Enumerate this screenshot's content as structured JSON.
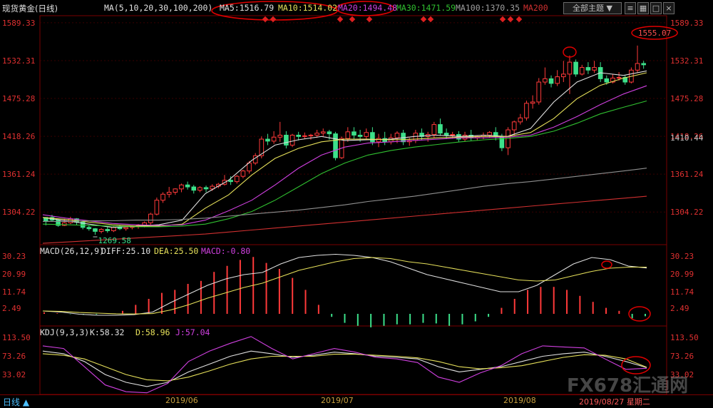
{
  "header": {
    "instrument": "现货黄金(日线)",
    "ma_label": "MA(5,10,20,30,100,200)",
    "ma5": "MA5:1516.79",
    "ma10": "MA10:1514.02",
    "ma20": "MA20:1494.48",
    "ma30": "MA30:1471.59",
    "ma100": "MA100:1370.35",
    "ma200": "MA200",
    "theme_button": "全部主题",
    "theme_arrow": "▼"
  },
  "macd_panel": {
    "title": "MACD(26,12,9)",
    "diff": "DIFF:25.10",
    "dea": "DEA:25.50",
    "macd": "MACD:-0.80",
    "ticks": [
      "30.23",
      "20.99",
      "11.74",
      "2.49"
    ]
  },
  "kdj_panel": {
    "title": "KDJ(9,3,3)",
    "k": "K:58.32",
    "d": "D:58.96",
    "j": "J:57.04",
    "ticks": [
      "113.50",
      "73.26",
      "33.02"
    ]
  },
  "footer": {
    "period": "日线 ▲",
    "months": [
      "2019/06",
      "2019/07",
      "2019/08"
    ],
    "current_date": "2019/08/27 星期二",
    "watermark": "FX678汇通网"
  },
  "colors": {
    "up": "#ff3a3a",
    "down": "#3ce08a",
    "ma5": "#e0e0e0",
    "ma10": "#e6e05a",
    "ma20": "#d040e0",
    "ma30": "#30c030",
    "ma100": "#909090",
    "ma200": "#d03030",
    "axis_text": "#e03030",
    "annotation": "#e00000"
  },
  "chart_data": {
    "type": "candlestick",
    "price_axis_ticks": [
      1589.33,
      1532.31,
      1475.28,
      1418.26,
      1361.24,
      1304.22
    ],
    "current_price_label": "1410.44",
    "annotations": [
      {
        "label": "1555.07",
        "type": "period-high"
      },
      {
        "label": "1269.58",
        "type": "period-low"
      }
    ],
    "candles": [
      [
        1296,
        1296,
        1290,
        1284
      ],
      [
        1296,
        1300,
        1292,
        1290
      ],
      [
        1292,
        1293,
        1284,
        1282
      ],
      [
        1284,
        1294,
        1288,
        1283
      ],
      [
        1288,
        1297,
        1294,
        1286
      ],
      [
        1294,
        1295,
        1289,
        1285
      ],
      [
        1289,
        1290,
        1281,
        1278
      ],
      [
        1281,
        1284,
        1279,
        1276
      ],
      [
        1279,
        1280,
        1275,
        1270
      ],
      [
        1275,
        1280,
        1278,
        1272
      ],
      [
        1278,
        1282,
        1276,
        1273
      ],
      [
        1276,
        1283,
        1281,
        1274
      ],
      [
        1281,
        1284,
        1279,
        1277
      ],
      [
        1279,
        1282,
        1281,
        1276
      ],
      [
        1281,
        1284,
        1282,
        1278
      ],
      [
        1282,
        1286,
        1284,
        1279
      ],
      [
        1284,
        1290,
        1288,
        1281
      ],
      [
        1288,
        1303,
        1301,
        1285
      ],
      [
        1301,
        1326,
        1322,
        1299
      ],
      [
        1322,
        1334,
        1331,
        1318
      ],
      [
        1331,
        1342,
        1334,
        1326
      ],
      [
        1334,
        1340,
        1339,
        1330
      ],
      [
        1339,
        1347,
        1345,
        1334
      ],
      [
        1345,
        1350,
        1342,
        1338
      ],
      [
        1342,
        1345,
        1337,
        1332
      ],
      [
        1337,
        1343,
        1341,
        1334
      ],
      [
        1341,
        1344,
        1339,
        1334
      ],
      [
        1339,
        1346,
        1343,
        1336
      ],
      [
        1343,
        1348,
        1346,
        1340
      ],
      [
        1346,
        1360,
        1352,
        1344
      ],
      [
        1352,
        1358,
        1350,
        1345
      ],
      [
        1350,
        1360,
        1358,
        1347
      ],
      [
        1358,
        1368,
        1366,
        1355
      ],
      [
        1366,
        1381,
        1378,
        1362
      ],
      [
        1378,
        1393,
        1389,
        1375
      ],
      [
        1389,
        1418,
        1414,
        1385
      ],
      [
        1414,
        1422,
        1411,
        1405
      ],
      [
        1411,
        1426,
        1417,
        1407
      ],
      [
        1417,
        1440,
        1420,
        1410
      ],
      [
        1420,
        1426,
        1405,
        1400
      ],
      [
        1405,
        1422,
        1420,
        1402
      ],
      [
        1420,
        1425,
        1418,
        1412
      ],
      [
        1418,
        1424,
        1419,
        1414
      ],
      [
        1419,
        1422,
        1420,
        1413
      ],
      [
        1420,
        1428,
        1423,
        1416
      ],
      [
        1423,
        1430,
        1425,
        1418
      ],
      [
        1425,
        1428,
        1422,
        1413
      ],
      [
        1422,
        1425,
        1386,
        1382
      ],
      [
        1386,
        1418,
        1415,
        1384
      ],
      [
        1415,
        1432,
        1425,
        1410
      ],
      [
        1425,
        1432,
        1420,
        1414
      ],
      [
        1420,
        1428,
        1418,
        1410
      ],
      [
        1418,
        1430,
        1424,
        1414
      ],
      [
        1424,
        1432,
        1410,
        1405
      ],
      [
        1410,
        1422,
        1415,
        1402
      ],
      [
        1415,
        1425,
        1410,
        1405
      ],
      [
        1410,
        1422,
        1416,
        1406
      ],
      [
        1416,
        1426,
        1423,
        1408
      ],
      [
        1423,
        1428,
        1410,
        1405
      ],
      [
        1410,
        1416,
        1412,
        1404
      ],
      [
        1412,
        1428,
        1423,
        1408
      ],
      [
        1423,
        1430,
        1418,
        1412
      ],
      [
        1418,
        1425,
        1421,
        1410
      ],
      [
        1421,
        1440,
        1436,
        1416
      ],
      [
        1436,
        1445,
        1423,
        1419
      ],
      [
        1423,
        1430,
        1420,
        1414
      ],
      [
        1420,
        1425,
        1421,
        1415
      ],
      [
        1421,
        1426,
        1414,
        1410
      ],
      [
        1414,
        1425,
        1420,
        1410
      ],
      [
        1420,
        1428,
        1416,
        1412
      ],
      [
        1416,
        1420,
        1418,
        1412
      ],
      [
        1418,
        1424,
        1420,
        1414
      ],
      [
        1420,
        1426,
        1424,
        1416
      ],
      [
        1424,
        1432,
        1418,
        1412
      ],
      [
        1418,
        1422,
        1401,
        1396
      ],
      [
        1401,
        1432,
        1428,
        1390
      ],
      [
        1428,
        1442,
        1440,
        1420
      ],
      [
        1440,
        1452,
        1446,
        1436
      ],
      [
        1446,
        1472,
        1468,
        1442
      ],
      [
        1468,
        1480,
        1470,
        1460
      ],
      [
        1470,
        1506,
        1500,
        1466
      ],
      [
        1500,
        1522,
        1505,
        1496
      ],
      [
        1505,
        1510,
        1498,
        1492
      ],
      [
        1498,
        1518,
        1508,
        1494
      ],
      [
        1508,
        1532,
        1512,
        1500
      ],
      [
        1512,
        1540,
        1530,
        1482
      ],
      [
        1530,
        1534,
        1512,
        1508
      ],
      [
        1512,
        1526,
        1522,
        1510
      ],
      [
        1522,
        1530,
        1518,
        1512
      ],
      [
        1518,
        1532,
        1522,
        1514
      ],
      [
        1522,
        1530,
        1505,
        1500
      ],
      [
        1505,
        1510,
        1500,
        1496
      ],
      [
        1500,
        1512,
        1506,
        1498
      ],
      [
        1506,
        1515,
        1507,
        1502
      ],
      [
        1507,
        1510,
        1500,
        1496
      ],
      [
        1500,
        1522,
        1518,
        1498
      ],
      [
        1518,
        1555,
        1528,
        1514
      ],
      [
        1528,
        1532,
        1526,
        1520
      ]
    ],
    "ma_series": [
      {
        "name": "MA5",
        "values": [
          1296,
          1291,
          1286,
          1281,
          1283,
          1285,
          1292,
          1332,
          1352,
          1382,
          1405,
          1413,
          1418,
          1412,
          1413,
          1414,
          1418,
          1420,
          1418,
          1420,
          1418,
          1430,
          1470,
          1500,
          1514,
          1510,
          1516.79
        ]
      },
      {
        "name": "MA10",
        "values": [
          1296,
          1293,
          1289,
          1285,
          1283,
          1283,
          1286,
          1310,
          1330,
          1360,
          1385,
          1400,
          1410,
          1414,
          1414,
          1413,
          1414,
          1416,
          1417,
          1418,
          1418,
          1424,
          1445,
          1475,
          1495,
          1506,
          1514.02
        ]
      },
      {
        "name": "MA20",
        "values": [
          1300,
          1295,
          1291,
          1287,
          1285,
          1284,
          1285,
          1292,
          1306,
          1322,
          1345,
          1370,
          1390,
          1402,
          1408,
          1410,
          1412,
          1414,
          1416,
          1416,
          1417,
          1420,
          1432,
          1448,
          1466,
          1482,
          1494.48
        ]
      },
      {
        "name": "MA30",
        "values": [
          1286,
          1285,
          1284,
          1283,
          1282,
          1282,
          1283,
          1286,
          1294,
          1305,
          1322,
          1342,
          1362,
          1378,
          1390,
          1397,
          1402,
          1406,
          1410,
          1413,
          1415,
          1418,
          1426,
          1438,
          1452,
          1462,
          1471.59
        ]
      },
      {
        "name": "MA100",
        "values": [
          1290,
          1290,
          1291,
          1291,
          1292,
          1292,
          1293,
          1295,
          1298,
          1301,
          1304,
          1307,
          1311,
          1315,
          1320,
          1324,
          1328,
          1333,
          1338,
          1343,
          1347,
          1350,
          1354,
          1358,
          1362,
          1366,
          1370.35
        ]
      },
      {
        "name": "MA200",
        "values": [
          1257,
          1259,
          1261,
          1263,
          1265,
          1267,
          1269,
          1271,
          1274,
          1277,
          1280,
          1283,
          1286,
          1289,
          1292,
          1295,
          1298,
          1301,
          1304,
          1307,
          1310,
          1313,
          1316,
          1319,
          1322,
          1325,
          1328
        ]
      }
    ],
    "macd": {
      "ylim": [
        0,
        34
      ],
      "diff": [
        5,
        4.5,
        3.5,
        3,
        3,
        3.3,
        4.5,
        9,
        13,
        17,
        20,
        22,
        23,
        27,
        30,
        31,
        31.5,
        31,
        30,
        28,
        25,
        22,
        20,
        18,
        16,
        14,
        14,
        17,
        22,
        27,
        30,
        29,
        26,
        25.1
      ],
      "dea": [
        5,
        4.8,
        4.3,
        4,
        3.7,
        3.6,
        3.8,
        5.5,
        8,
        11,
        13.5,
        16,
        18,
        21,
        24,
        26,
        28,
        29.5,
        30,
        29.5,
        28,
        27,
        25.5,
        24,
        22.5,
        21,
        19.5,
        19,
        19.5,
        21.5,
        23.5,
        25,
        25.5,
        25.5
      ],
      "histogram": [
        0.5,
        0.2,
        -0.1,
        -0.3,
        -0.2,
        0,
        1,
        3,
        5,
        7,
        8,
        10,
        11,
        14,
        16,
        18,
        19,
        17,
        15,
        12,
        8,
        3,
        -1,
        -3,
        -4,
        -4.5,
        -4,
        -3.5,
        -3.5,
        -3,
        -3.2,
        -4,
        -3.5,
        -2.5,
        -1,
        2,
        5,
        8,
        9,
        9,
        8,
        6,
        4,
        2,
        1,
        -1.5,
        -0.8
      ]
    },
    "kdj": {
      "ylim": [
        15,
        130
      ],
      "k": [
        90,
        85,
        70,
        45,
        30,
        22,
        30,
        50,
        65,
        80,
        90,
        85,
        78,
        82,
        88,
        85,
        80,
        78,
        75,
        60,
        50,
        55,
        60,
        70,
        80,
        85,
        88,
        80,
        70,
        58.32
      ],
      "d": [
        85,
        82,
        75,
        60,
        45,
        35,
        33,
        40,
        52,
        65,
        75,
        80,
        80,
        80,
        84,
        84,
        82,
        80,
        77,
        70,
        60,
        56,
        58,
        62,
        70,
        78,
        83,
        82,
        75,
        58.96
      ],
      "j": [
        100,
        95,
        60,
        25,
        12,
        10,
        28,
        70,
        90,
        105,
        118,
        95,
        75,
        85,
        95,
        88,
        78,
        75,
        68,
        40,
        30,
        48,
        62,
        85,
        100,
        98,
        96,
        75,
        55,
        57.04
      ]
    }
  }
}
